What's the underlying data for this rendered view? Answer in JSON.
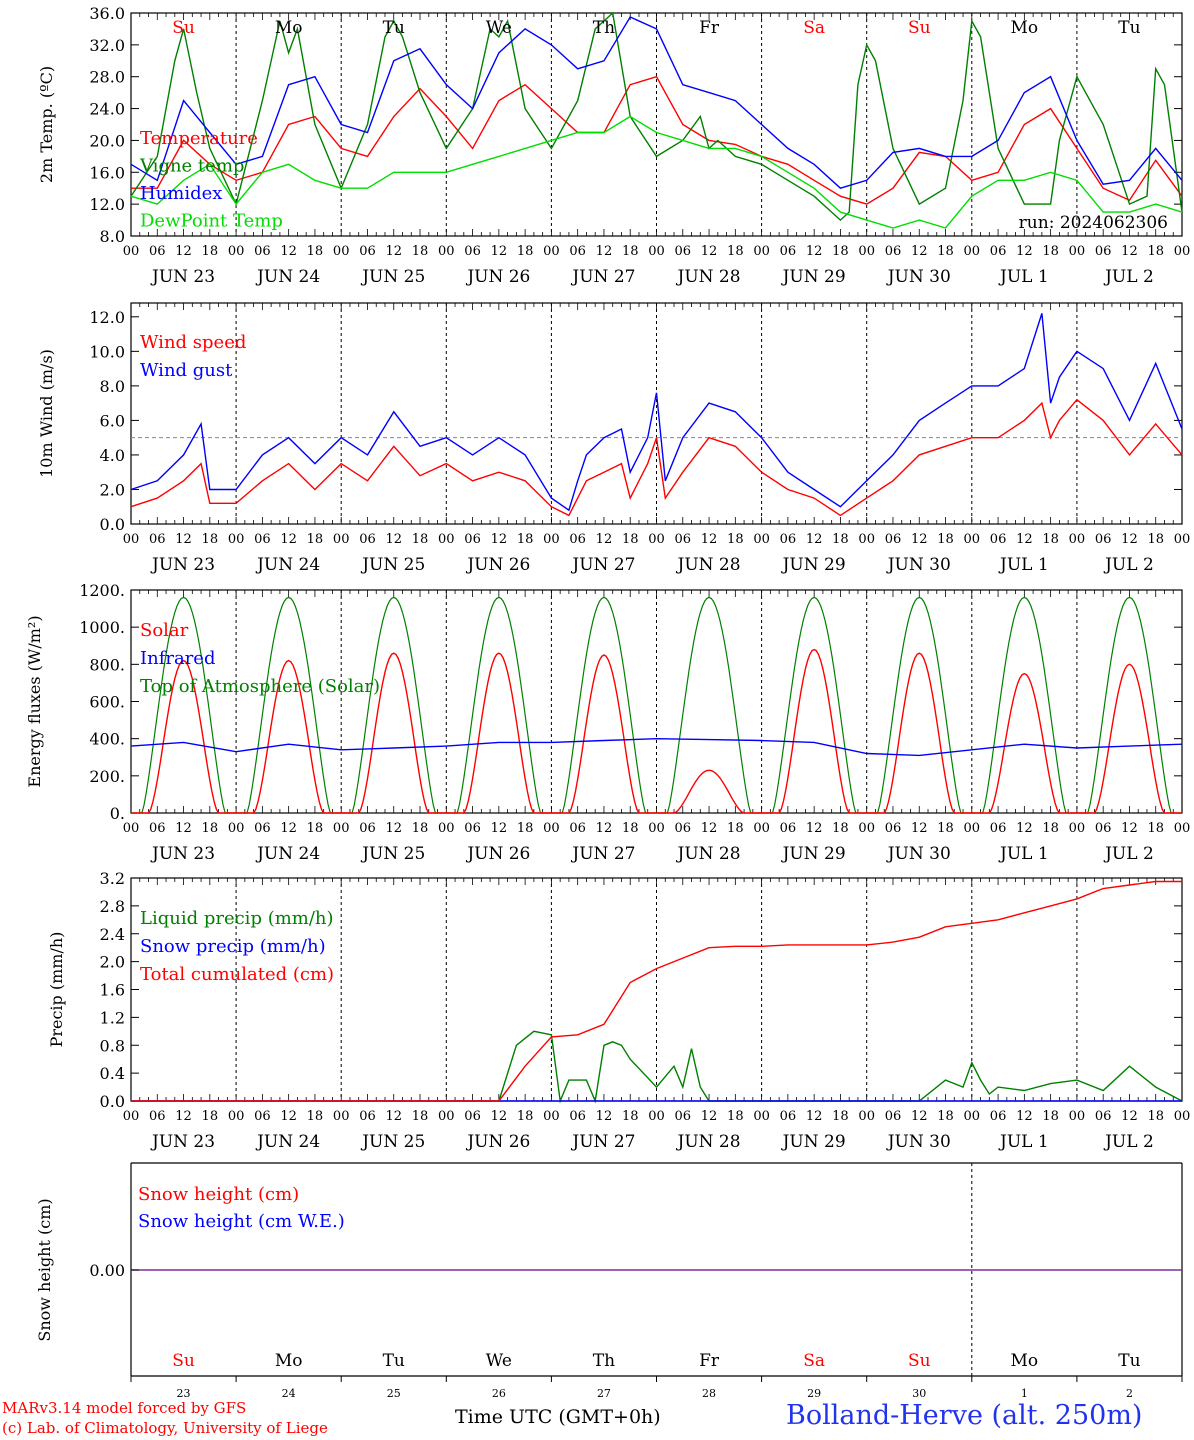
{
  "chart_data": [
    {
      "type": "line",
      "ylabel": "2m Temp. (ºC)",
      "ylim": [
        8,
        36
      ],
      "yticks": [
        "36.0",
        "32.0",
        "28.0",
        "24.0",
        "20.0",
        "16.0",
        "12.0",
        "8.0"
      ],
      "run_label": "run: 2024062306",
      "x_unit": "hours since Jun 23 00 UTC",
      "series": [
        {
          "name": "Temperature",
          "color": "#ff0000",
          "x": [
            0,
            6,
            12,
            18,
            24,
            30,
            36,
            42,
            48,
            54,
            60,
            66,
            72,
            78,
            84,
            90,
            96,
            102,
            108,
            114,
            120,
            126,
            132,
            138,
            144,
            150,
            156,
            162,
            168,
            174,
            180,
            186,
            192,
            198,
            204,
            210,
            216,
            222,
            228,
            234,
            240
          ],
          "y": [
            14,
            14,
            20,
            17,
            15,
            16,
            22,
            23,
            19,
            18,
            23,
            26.5,
            23,
            19,
            25,
            27,
            24,
            21,
            21,
            27,
            28,
            22,
            20,
            19.5,
            18,
            17,
            15,
            13,
            12,
            14,
            18.5,
            18,
            15,
            16,
            22,
            24,
            19,
            14,
            12.5,
            17.5,
            13
          ]
        },
        {
          "name": "Vigne temp",
          "color": "#008000",
          "x": [
            0,
            6,
            10,
            12,
            15,
            18,
            24,
            30,
            34,
            36,
            38,
            42,
            48,
            54,
            58,
            60,
            62,
            66,
            72,
            78,
            82,
            84,
            86,
            90,
            96,
            102,
            106,
            108,
            110,
            114,
            120,
            126,
            130,
            132,
            134,
            138,
            144,
            150,
            156,
            162,
            164,
            166,
            168,
            170,
            174,
            180,
            186,
            190,
            192,
            194,
            198,
            204,
            210,
            212,
            216,
            222,
            228,
            232,
            234,
            236,
            240
          ],
          "y": [
            13,
            18,
            30,
            34,
            26,
            19,
            12,
            25,
            35,
            31,
            34,
            22,
            14,
            22,
            33,
            35,
            33,
            26,
            19,
            24,
            34,
            33,
            35,
            24,
            19,
            25,
            34,
            35,
            36,
            23,
            18,
            20,
            23,
            19,
            20,
            18,
            17,
            15,
            13,
            10,
            11,
            27,
            32,
            30,
            19,
            12,
            14,
            25,
            35,
            33,
            19,
            12,
            12,
            20,
            28,
            22,
            12,
            13,
            29,
            27,
            11
          ]
        },
        {
          "name": "Humidex",
          "color": "#0000ff",
          "x": [
            0,
            6,
            12,
            18,
            24,
            30,
            36,
            42,
            48,
            54,
            60,
            66,
            72,
            78,
            84,
            90,
            96,
            102,
            108,
            114,
            120,
            126,
            132,
            138,
            144,
            150,
            156,
            162,
            168,
            174,
            180,
            186,
            192,
            198,
            204,
            210,
            216,
            222,
            228,
            234,
            240
          ],
          "y": [
            17,
            15,
            25,
            21,
            17,
            18,
            27,
            28,
            22,
            21,
            30,
            31.5,
            27,
            24,
            31,
            34,
            32,
            29,
            30,
            35.5,
            34,
            27,
            26,
            25,
            22,
            19,
            17,
            14,
            15,
            18.5,
            19,
            18,
            18,
            20,
            26,
            28,
            20,
            14.5,
            15,
            19,
            15
          ]
        },
        {
          "name": "DewPoint Temp",
          "color": "#00dd00",
          "x": [
            0,
            6,
            12,
            18,
            24,
            30,
            36,
            42,
            48,
            54,
            60,
            66,
            72,
            78,
            84,
            90,
            96,
            102,
            108,
            114,
            120,
            126,
            132,
            138,
            144,
            150,
            156,
            162,
            168,
            174,
            180,
            186,
            192,
            198,
            204,
            210,
            216,
            222,
            228,
            234,
            240
          ],
          "y": [
            13,
            12,
            15,
            17,
            12,
            16,
            17,
            15,
            14,
            14,
            16,
            16,
            16,
            17,
            18,
            19,
            20,
            21,
            21,
            23,
            21,
            20,
            19,
            19,
            18,
            16,
            14,
            11,
            10,
            9,
            10,
            9,
            13,
            15,
            15,
            16,
            15,
            11,
            11,
            12,
            11
          ]
        }
      ]
    },
    {
      "type": "line",
      "ylabel": "10m Wind (m/s)",
      "ylim": [
        0,
        12.8
      ],
      "yticks": [
        "12.0",
        "10.0",
        "8.0",
        "6.0",
        "4.0",
        "2.0",
        "0.0"
      ],
      "reference_line": 5,
      "series": [
        {
          "name": "Wind speed",
          "color": "#ff0000",
          "x": [
            0,
            6,
            12,
            16,
            18,
            24,
            30,
            36,
            42,
            48,
            54,
            60,
            66,
            72,
            78,
            84,
            90,
            96,
            100,
            102,
            104,
            108,
            112,
            114,
            118,
            120,
            122,
            126,
            132,
            138,
            144,
            150,
            156,
            162,
            168,
            174,
            180,
            186,
            192,
            198,
            204,
            208,
            210,
            212,
            216,
            222,
            228,
            234,
            240
          ],
          "y": [
            1,
            1.5,
            2.5,
            3.5,
            1.2,
            1.2,
            2.5,
            3.5,
            2,
            3.5,
            2.5,
            4.5,
            2.8,
            3.5,
            2.5,
            3,
            2.5,
            1,
            0.5,
            1.5,
            2.5,
            3,
            3.5,
            1.5,
            3.5,
            5,
            1.5,
            3,
            5,
            4.5,
            3,
            2,
            1.5,
            0.5,
            1.5,
            2.5,
            4,
            4.5,
            5,
            5,
            6,
            7,
            5,
            6,
            7.2,
            6,
            4,
            5.8,
            4
          ]
        },
        {
          "name": "Wind gust",
          "color": "#0000ff",
          "x": [
            0,
            6,
            12,
            16,
            18,
            24,
            30,
            36,
            42,
            48,
            54,
            60,
            66,
            72,
            78,
            84,
            90,
            96,
            100,
            102,
            104,
            108,
            112,
            114,
            118,
            120,
            122,
            126,
            132,
            138,
            144,
            150,
            156,
            162,
            168,
            174,
            180,
            186,
            192,
            198,
            204,
            208,
            210,
            212,
            216,
            222,
            228,
            234,
            240
          ],
          "y": [
            2,
            2.5,
            4,
            5.8,
            2,
            2,
            4,
            5,
            3.5,
            5,
            4,
            6.5,
            4.5,
            5,
            4,
            5,
            4,
            1.5,
            0.8,
            2.5,
            4,
            5,
            5.5,
            3,
            5,
            7.6,
            2.5,
            5,
            7,
            6.5,
            5,
            3,
            2,
            1,
            2.5,
            4,
            6,
            7,
            8,
            8,
            9,
            12.2,
            7,
            8.5,
            10,
            9,
            6,
            9.3,
            5.5
          ]
        }
      ]
    },
    {
      "type": "line",
      "ylabel": "Energy fluxes (W/m²)",
      "ylim": [
        0,
        1200
      ],
      "yticks": [
        "1200.",
        "1000.",
        "800.",
        "600.",
        "400.",
        "200.",
        "0."
      ],
      "series": [
        {
          "name": "Solar",
          "color": "#ff0000",
          "peaks": [
            820,
            820,
            860,
            860,
            850,
            230,
            880,
            860,
            750,
            800
          ]
        },
        {
          "name": "Infrared",
          "color": "#0000ff",
          "x": [
            0,
            12,
            24,
            36,
            48,
            60,
            72,
            84,
            96,
            108,
            120,
            132,
            144,
            156,
            168,
            180,
            192,
            204,
            216,
            228,
            240
          ],
          "y": [
            360,
            380,
            330,
            370,
            340,
            350,
            360,
            380,
            380,
            390,
            400,
            395,
            390,
            380,
            320,
            310,
            340,
            370,
            350,
            360,
            370
          ]
        },
        {
          "name": "Top of Atmosphere (Solar)",
          "color": "#008000",
          "peak": 1160
        }
      ]
    },
    {
      "type": "line",
      "ylabel": "Precip (mm/h)",
      "ylim": [
        0,
        3.2
      ],
      "yticks": [
        "3.2",
        "2.8",
        "2.4",
        "2.0",
        "1.6",
        "1.2",
        "0.8",
        "0.4",
        "0.0"
      ],
      "series": [
        {
          "name": "Liquid precip (mm/h)",
          "color": "#008000",
          "x": [
            0,
            72,
            84,
            88,
            92,
            96,
            98,
            100,
            104,
            106,
            108,
            110,
            112,
            114,
            120,
            124,
            126,
            128,
            130,
            132,
            138,
            144,
            150,
            156,
            180,
            186,
            190,
            192,
            194,
            196,
            198,
            204,
            210,
            216,
            222,
            228,
            234,
            240
          ],
          "y": [
            0,
            0,
            0,
            0.8,
            1,
            0.95,
            0,
            0.3,
            0.3,
            0,
            0.8,
            0.85,
            0.8,
            0.6,
            0.2,
            0.5,
            0.2,
            0.75,
            0.2,
            0,
            0,
            0,
            0,
            0,
            0,
            0.3,
            0.2,
            0.55,
            0.3,
            0.1,
            0.2,
            0.15,
            0.25,
            0.3,
            0.15,
            0.5,
            0.2,
            0
          ]
        },
        {
          "name": "Snow precip (mm/h)",
          "color": "#0000ff",
          "x": [
            0,
            240
          ],
          "y": [
            0,
            0
          ]
        },
        {
          "name": "Total cumulated (cm)",
          "color": "#ff0000",
          "x": [
            0,
            84,
            90,
            96,
            102,
            108,
            114,
            120,
            126,
            132,
            138,
            144,
            150,
            156,
            162,
            168,
            174,
            180,
            186,
            192,
            198,
            204,
            210,
            216,
            222,
            228,
            234,
            240
          ],
          "y": [
            0,
            0,
            0.5,
            0.92,
            0.95,
            1.1,
            1.7,
            1.9,
            2.05,
            2.2,
            2.22,
            2.22,
            2.24,
            2.24,
            2.24,
            2.24,
            2.28,
            2.35,
            2.5,
            2.55,
            2.6,
            2.7,
            2.8,
            2.9,
            3.05,
            3.1,
            3.15,
            3.15
          ]
        }
      ]
    },
    {
      "type": "line",
      "ylabel": "Snow height (cm)",
      "yticks": [
        "0.00"
      ],
      "series": [
        {
          "name": "Snow height (cm)",
          "color": "#ff0000",
          "x": [
            0,
            240
          ],
          "y": [
            0,
            0
          ]
        },
        {
          "name": "Snow height (cm W.E.)",
          "color": "#0000ff",
          "x": [
            0,
            240
          ],
          "y": [
            0,
            0
          ]
        }
      ]
    }
  ],
  "day_labels": [
    "Su",
    "Mo",
    "Tu",
    "We",
    "Th",
    "Fr",
    "Sa",
    "Su",
    "Mo",
    "Tu"
  ],
  "day_label_colors": [
    "#ff0000",
    "#000000",
    "#000000",
    "#000000",
    "#000000",
    "#000000",
    "#ff0000",
    "#ff0000",
    "#000000",
    "#000000"
  ],
  "date_labels": [
    "JUN 23",
    "JUN 24",
    "JUN 25",
    "JUN 26",
    "JUN 27",
    "JUN 28",
    "JUN 29",
    "JUN 30",
    "JUL  1",
    "JUL  2"
  ],
  "hour_ticks": [
    "00",
    "06",
    "12",
    "18"
  ],
  "day_numbers": [
    "23",
    "24",
    "25",
    "26",
    "27",
    "28",
    "29",
    "30",
    "1",
    "2"
  ],
  "footer": {
    "credit_line1": "MARv3.14 model forced by GFS",
    "credit_line2": "(c) Lab. of Climatology, University of Liege",
    "time_label": "Time UTC (GMT+0h)",
    "location": "Bolland-Herve (alt. 250m)"
  }
}
